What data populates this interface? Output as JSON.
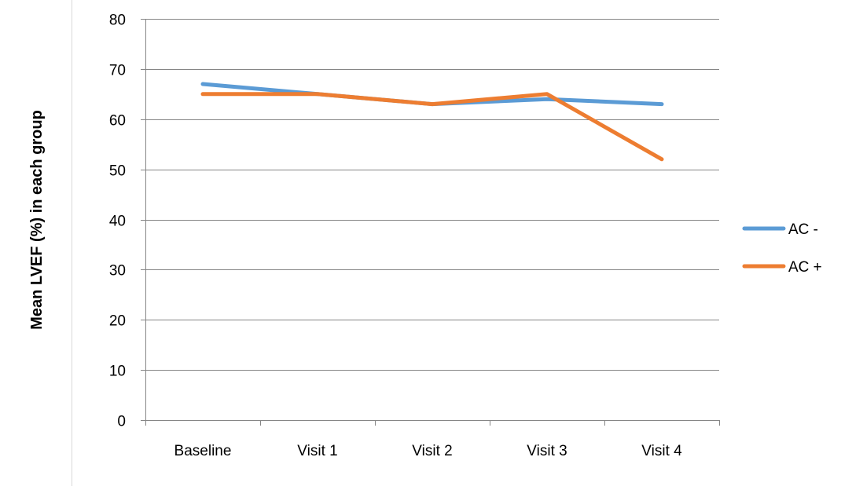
{
  "chart_data": {
    "type": "line",
    "title": "",
    "xlabel": "",
    "ylabel": "Mean LVEF (%) in each group",
    "categories": [
      "Baseline",
      "Visit 1",
      "Visit 2",
      "Visit 3",
      "Visit 4"
    ],
    "ylim": [
      0,
      80
    ],
    "yticks": [
      0,
      10,
      20,
      30,
      40,
      50,
      60,
      70,
      80
    ],
    "grid": true,
    "legend_position": "right",
    "series": [
      {
        "name": "AC -",
        "values": [
          67,
          65,
          63,
          64,
          63
        ],
        "color": "#5B9BD5"
      },
      {
        "name": "AC +",
        "values": [
          65,
          65,
          63,
          65,
          52
        ],
        "color": "#ED7D31"
      }
    ]
  }
}
